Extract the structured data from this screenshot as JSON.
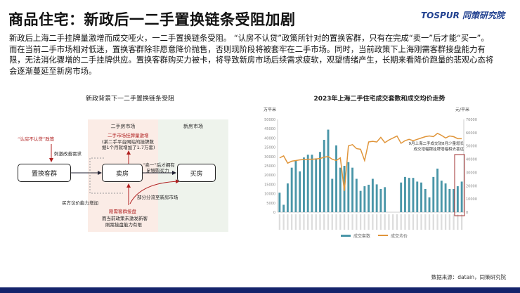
{
  "header": {
    "title": "商品住宅：新政后一二手置换链条受阻加剧",
    "logo": "TOSPUR 同策研究院"
  },
  "body_text": "新政后上海二手挂牌量激增而成交哑火，一二手置换链条受阻。 “认房不认贷”政策所针对的置换客群，只有在完成“卖一”后才能“买一”。而在当前二手市场相对低迷，置换客群除非愿意降价抛售，否则现阶段将被套牢在二手市场。同时，当前政策下上海刚需客群接盘能力有限，无法消化骤增的二手挂牌供应。置换客群购买力被卡，将导致新房市场后续需求疲软，观望情绪产生，长期来看降价跑量的悲观心态将会逐渐蔓延至新房市场。",
  "diagram": {
    "title": "新政背景下一二手置换链条受阻",
    "zone_second": "二手房市场",
    "zone_new": "新房市场",
    "box_group": "置换客群",
    "box_sell": "卖房",
    "box_buy": "买房",
    "policy": "“认房不认贷”政策",
    "stimulate": "刺激改善需求",
    "listing_up": "二手市场挂牌量激增",
    "listing_note1": "(某二手平台网站的挂牌数",
    "listing_note2": "据1个月就增加了1.7万套)",
    "sell_first1": "“卖一”后才拥有",
    "sell_first2": "足够购买力",
    "diversion": "部分分流至新房市场",
    "bargain": "买方议价能力增加",
    "rigid": "刚需客群接盘",
    "rigid_note1": "而当前政策未激发新客",
    "rigid_note2": "刚需接盘能力有限"
  },
  "chart_data": {
    "type": "bar+line",
    "title": "2023年上海二手住宅成交套数和成交均价走势",
    "ylabel_left": "万平米",
    "ylabel_right": "元/平米",
    "ylim_left": [
      0,
      50000
    ],
    "yticks_left": [
      0,
      5000,
      10000,
      15000,
      20000,
      25000,
      30000,
      35000,
      40000,
      45000,
      50000
    ],
    "ylim_right": [
      0,
      70000
    ],
    "yticks_right": [
      0,
      10000,
      20000,
      30000,
      40000,
      50000,
      60000,
      70000
    ],
    "series": [
      {
        "name": "成交套数",
        "type": "bar",
        "axis": "left",
        "color": "#4a96a8",
        "values": [
          10500,
          4000,
          15500,
          24000,
          28000,
          22000,
          29500,
          31000,
          31000,
          29000,
          32500,
          39000,
          44500,
          18000,
          36000,
          24000,
          25000,
          27000,
          24000,
          18000,
          11500,
          14000,
          14800,
          18000,
          15000,
          12500,
          13500,
          0,
          0,
          0,
          16000,
          19000,
          18500,
          18500,
          16500,
          16000,
          12500,
          8000,
          19000,
          23500,
          17000,
          15500,
          12500,
          12500,
          14000,
          16500
        ]
      },
      {
        "name": "成交均价",
        "type": "line",
        "axis": "right",
        "color": "#e0953a",
        "values": [
          41000,
          42500,
          37000,
          38500,
          39000,
          39500,
          39800,
          40000,
          40000,
          40200,
          40500,
          41500,
          42000,
          40000,
          39000,
          41000,
          16000,
          50000,
          51000,
          48000,
          47500,
          39000,
          53000,
          53500,
          53000,
          56500,
          52500,
          54500,
          56000,
          57500,
          52000,
          54000,
          55000,
          54000,
          55000,
          56000,
          57000,
          57500,
          57000,
          59500,
          58000,
          56000,
          57500,
          57000,
          55500,
          55500
        ]
      }
    ],
    "annotation": [
      "9月上海二手成交较8月少量增长",
      "成交增幅跟挂牌增幅相去甚远"
    ],
    "legend_position": "bottom",
    "grid": false,
    "highlight_color": "#a03030"
  },
  "footer": {
    "source": "数据来源：datain，同策研究院"
  }
}
